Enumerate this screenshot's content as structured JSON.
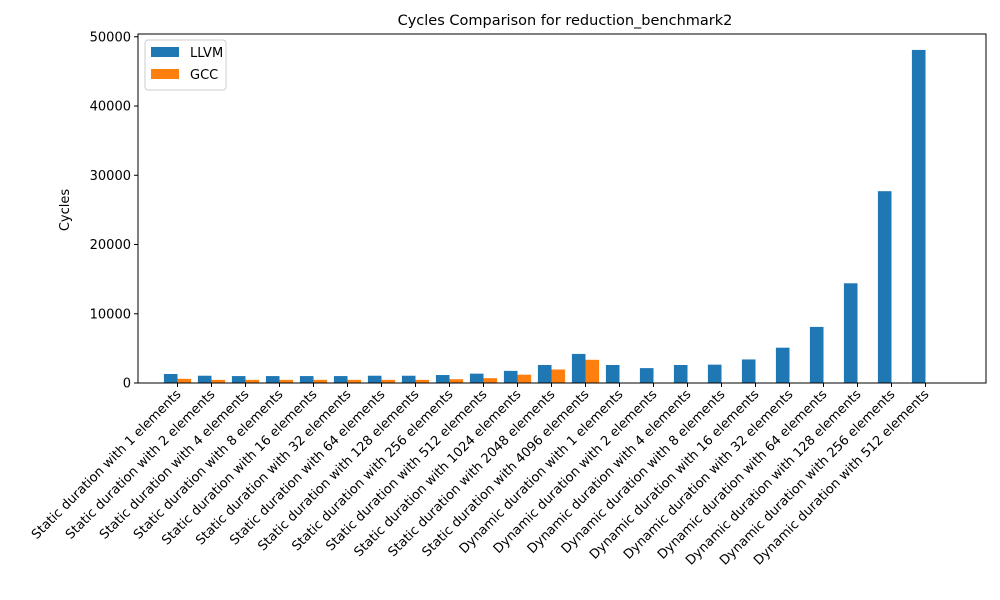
{
  "chart_data": {
    "type": "bar",
    "title": "Cycles Comparison for reduction_benchmark2",
    "xlabel": "",
    "ylabel": "Cycles",
    "ylim": [
      0,
      50400
    ],
    "yticks": [
      0,
      10000,
      20000,
      30000,
      40000,
      50000
    ],
    "grid": false,
    "legend_position": "top-left",
    "categories": [
      "Static duration with 1 elements",
      "Static duration with 2 elements",
      "Static duration with 4 elements",
      "Static duration with 8 elements",
      "Static duration with 16 elements",
      "Static duration with 32 elements",
      "Static duration with 64 elements",
      "Static duration with 128 elements",
      "Static duration with 256 elements",
      "Static duration with 512 elements",
      "Static duration with 1024 elements",
      "Static duration with 2048 elements",
      "Static duration with 4096 elements",
      "Dynamic duration with 1 elements",
      "Dynamic duration with 2 elements",
      "Dynamic duration with 4 elements",
      "Dynamic duration with 8 elements",
      "Dynamic duration with 16 elements",
      "Dynamic duration with 32 elements",
      "Dynamic duration with 64 elements",
      "Dynamic duration with 128 elements",
      "Dynamic duration with 256 elements",
      "Dynamic duration with 512 elements"
    ],
    "series": [
      {
        "name": "LLVM",
        "color": "#1f77b4",
        "values": [
          1300,
          1050,
          1000,
          1000,
          1000,
          1000,
          1050,
          1050,
          1150,
          1350,
          1750,
          2600,
          4200,
          2600,
          2150,
          2600,
          2650,
          3400,
          5100,
          8100,
          14400,
          27700,
          48100
        ]
      },
      {
        "name": "GCC",
        "color": "#ff7f0e",
        "values": [
          600,
          450,
          450,
          450,
          450,
          450,
          450,
          450,
          550,
          700,
          1200,
          1950,
          3350,
          null,
          null,
          null,
          null,
          null,
          null,
          null,
          null,
          null,
          null
        ]
      }
    ]
  }
}
